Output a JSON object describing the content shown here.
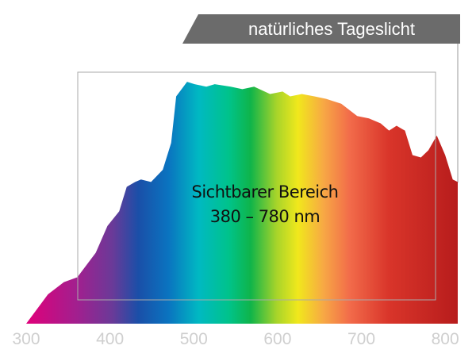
{
  "chart_data": {
    "type": "area",
    "title": "natürliches Tageslicht",
    "annotations": [
      "Sichtbarer Bereich",
      "380 – 780 nm"
    ],
    "x": [
      300,
      326,
      345,
      361,
      383,
      397,
      411,
      420,
      430,
      437,
      449,
      463,
      473,
      479,
      492,
      501,
      515,
      525,
      544,
      558,
      572,
      591,
      606,
      615,
      629,
      644,
      658,
      676,
      695,
      709,
      723,
      733,
      742,
      752,
      761,
      771,
      780,
      790,
      800,
      809,
      815
    ],
    "values": [
      0,
      12,
      17,
      19,
      29,
      40,
      46,
      56,
      58,
      59,
      58,
      63,
      74,
      93,
      99,
      98,
      97,
      98,
      97,
      96,
      97,
      94,
      95,
      93,
      94,
      93,
      92,
      90,
      85,
      84,
      82,
      79,
      81,
      79,
      69,
      68,
      71,
      77,
      69,
      59,
      58
    ],
    "xlim": [
      300,
      815
    ],
    "xticks": [
      300,
      400,
      500,
      600,
      700,
      800
    ],
    "ylim": [
      0,
      100
    ]
  }
}
